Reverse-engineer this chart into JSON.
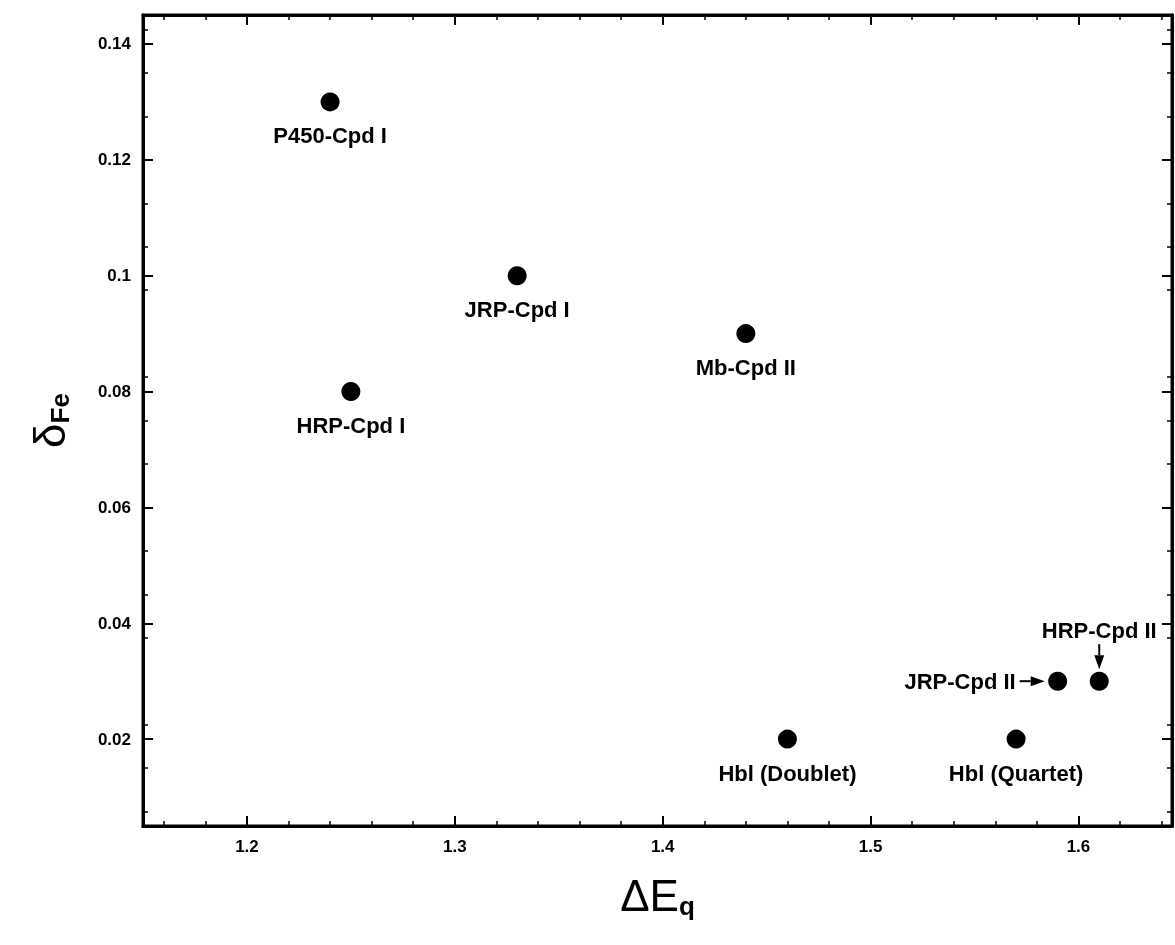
{
  "chart_data": {
    "type": "scatter",
    "xlabel": "ΔE$_{q}$",
    "ylabel": "δ$_{Fe}$",
    "x": [
      1.24,
      1.33,
      1.44,
      1.25,
      1.59,
      1.61,
      1.46,
      1.57
    ],
    "values": [
      0.13,
      0.1,
      0.09,
      0.08,
      0.03,
      0.03,
      0.02,
      0.02
    ],
    "color": "#000000",
    "marker": "circle",
    "grid": false,
    "xlim": [
      1.15,
      1.645
    ],
    "xticks": [
      1.2,
      1.3,
      1.4,
      1.5,
      1.6
    ],
    "ylim": [
      0.005,
      0.145
    ],
    "yticks": [
      0.02,
      0.04,
      0.06,
      0.08,
      0.1,
      0.12,
      0.14
    ],
    "annotations": [
      {
        "text": "P450-Cpd I",
        "x": 1.24,
        "y": 0.13
      },
      {
        "text": "JRP-Cpd I",
        "x": 1.33,
        "y": 0.1
      },
      {
        "text": "Mb-Cpd II",
        "x": 1.44,
        "y": 0.09
      },
      {
        "text": "HRP-Cpd I",
        "x": 1.25,
        "y": 0.08
      },
      {
        "text": "JRP-Cpd II",
        "x": 1.59,
        "y": 0.03
      },
      {
        "text": "HRP-Cpd II",
        "x": 1.61,
        "y": 0.03
      },
      {
        "text": "Hbl (Doublet)",
        "x": 1.46,
        "y": 0.02
      },
      {
        "text": "Hbl (Quartet)",
        "x": 1.57,
        "y": 0.02
      }
    ]
  }
}
